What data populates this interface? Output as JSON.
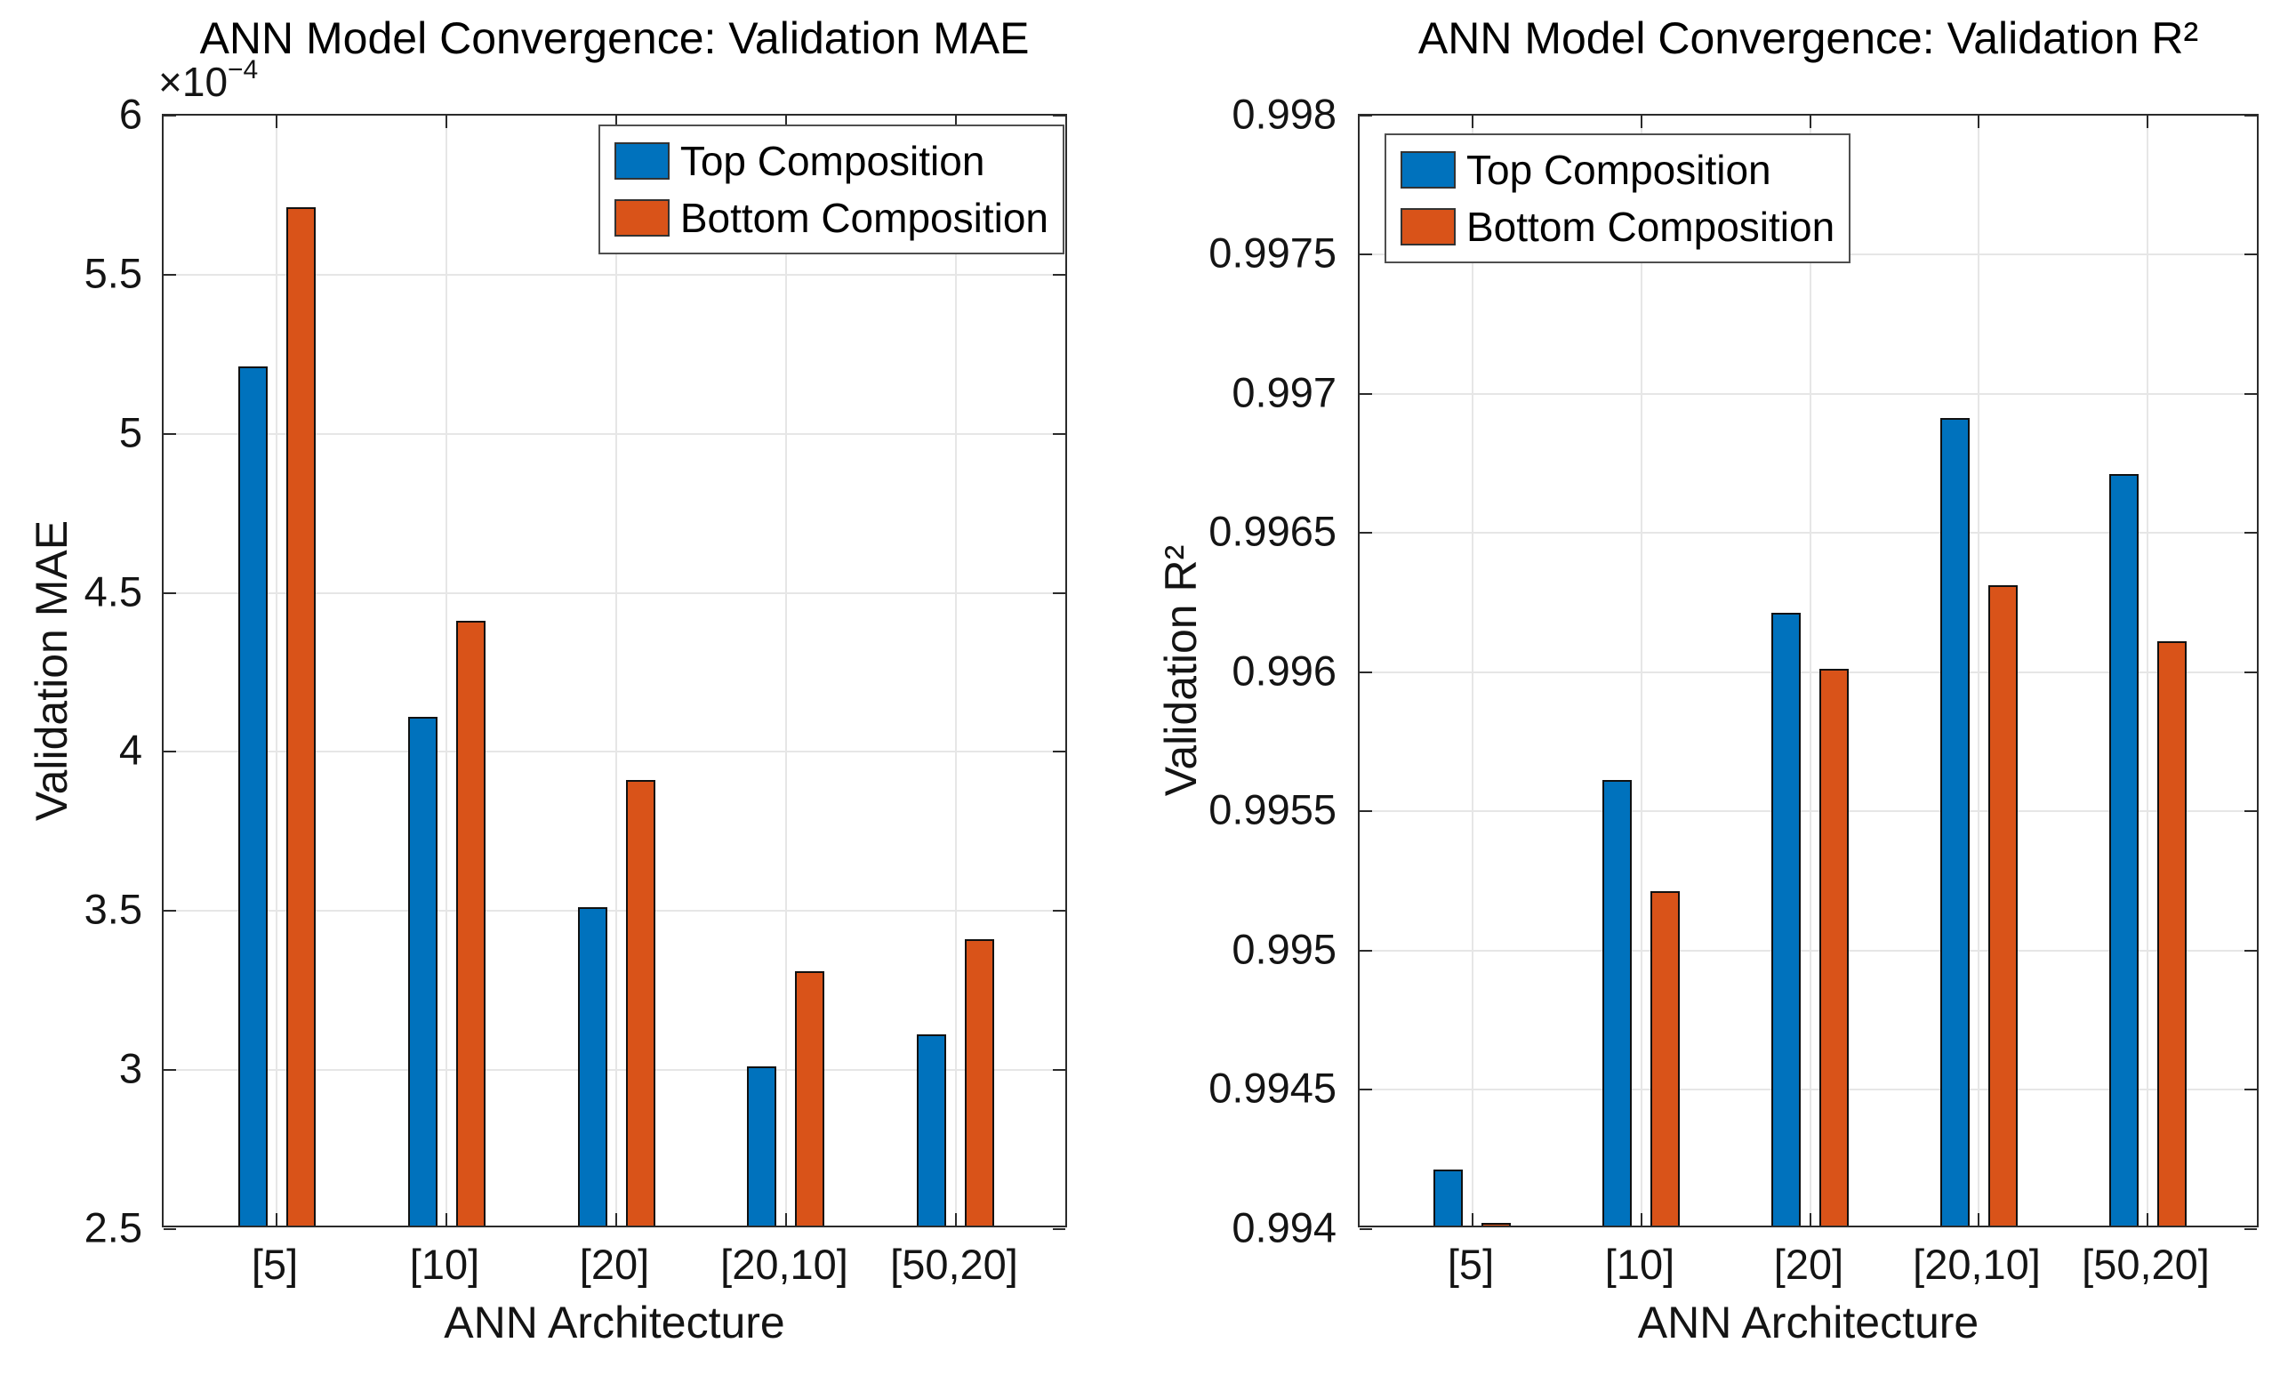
{
  "figure": {
    "background": "#ffffff",
    "legend": [
      "Top Composition",
      "Bottom Composition"
    ],
    "accent_blue": "#0072BD",
    "accent_orange": "#D95319"
  },
  "chart_data": [
    {
      "type": "bar",
      "title": "ANN Model Convergence: Validation MAE",
      "xlabel": "ANN Architecture",
      "ylabel": "Validation MAE",
      "y_offset_base": "×10",
      "y_offset_exp": "−4",
      "y_scale": "1e-4",
      "categories": [
        "[5]",
        "[10]",
        "[20]",
        "[20,10]",
        "[50,20]"
      ],
      "series": [
        {
          "name": "Top Composition",
          "color": "#0072BD",
          "values": [
            5.2,
            4.1,
            3.5,
            3.0,
            3.1
          ]
        },
        {
          "name": "Bottom Composition",
          "color": "#D95319",
          "values": [
            5.7,
            4.4,
            3.9,
            3.3,
            3.4
          ]
        }
      ],
      "ylim": [
        2.5,
        6
      ],
      "y_ticks": [
        2.5,
        3,
        3.5,
        4,
        4.5,
        5,
        5.5,
        6
      ],
      "y_tick_labels": [
        "2.5",
        "3",
        "3.5",
        "4",
        "4.5",
        "5",
        "5.5",
        "6"
      ],
      "grid": true,
      "legend_position": "top-right"
    },
    {
      "type": "bar",
      "title": "ANN Model Convergence: Validation R²",
      "xlabel": "ANN Architecture",
      "ylabel": "Validation R²",
      "categories": [
        "[5]",
        "[10]",
        "[20]",
        "[20,10]",
        "[50,20]"
      ],
      "series": [
        {
          "name": "Top Composition",
          "color": "#0072BD",
          "values": [
            0.9942,
            0.9956,
            0.9962,
            0.9969,
            0.9967
          ]
        },
        {
          "name": "Bottom Composition",
          "color": "#D95319",
          "values": [
            0.994,
            0.9952,
            0.996,
            0.9963,
            0.9961
          ]
        }
      ],
      "ylim": [
        0.994,
        0.998
      ],
      "y_ticks": [
        0.994,
        0.9945,
        0.995,
        0.9955,
        0.996,
        0.9965,
        0.997,
        0.9975,
        0.998
      ],
      "y_tick_labels": [
        "0.994",
        "0.9945",
        "0.995",
        "0.9955",
        "0.996",
        "0.9965",
        "0.997",
        "0.9975",
        "0.998"
      ],
      "grid": true,
      "legend_position": "top-left"
    }
  ]
}
